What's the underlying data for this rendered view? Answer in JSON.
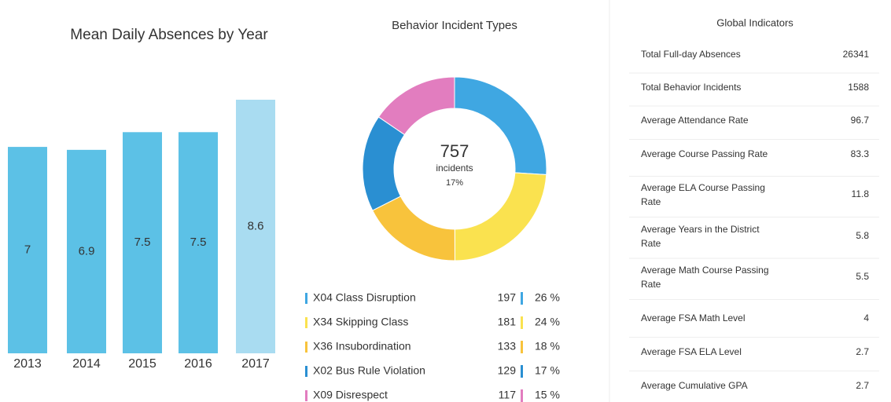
{
  "chart_data": [
    {
      "type": "bar",
      "title": "Mean Daily Absences by Year",
      "categories": [
        "2013",
        "2014",
        "2015",
        "2016",
        "2017"
      ],
      "values": [
        7,
        6.9,
        7.5,
        7.5,
        8.6
      ],
      "colors": [
        "#5cc1e6",
        "#5cc1e6",
        "#5cc1e6",
        "#5cc1e6",
        "#a9dcf1"
      ]
    },
    {
      "type": "pie",
      "title": "Behavior Incident Types",
      "center_value": 757,
      "center_label": "incidents",
      "center_sub": "17%",
      "categories": [
        "X04 Class Disruption",
        "X34 Skipping Class",
        "X36 Insubordination",
        "X02 Bus Rule Violation",
        "X09 Disrespect"
      ],
      "values": [
        197,
        181,
        133,
        129,
        117
      ],
      "percent_labels": [
        "26 %",
        "24 %",
        "18 %",
        "17 %",
        "15 %"
      ],
      "colors": [
        "#3fa7e2",
        "#fae24f",
        "#f8c33c",
        "#2a8fd2",
        "#e27dbf"
      ]
    }
  ],
  "indicators": {
    "title": "Global Indicators",
    "rows": [
      [
        "Total Full-day Absences",
        26341
      ],
      [
        "Total Behavior Incidents",
        1588
      ],
      [
        "Average Attendance Rate",
        96.7
      ],
      [
        "Average Course Passing Rate",
        83.3
      ],
      [
        "Average ELA Course Passing Rate",
        11.8
      ],
      [
        "Average Years in the District",
        5.8
      ],
      [
        "Average Math Course Passing Rate",
        5.5
      ],
      [
        "Average FSA Math Level",
        4
      ],
      [
        "Average FSA ELA Level",
        2.7
      ],
      [
        "Average Cumulative GPA",
        2.7
      ]
    ]
  }
}
